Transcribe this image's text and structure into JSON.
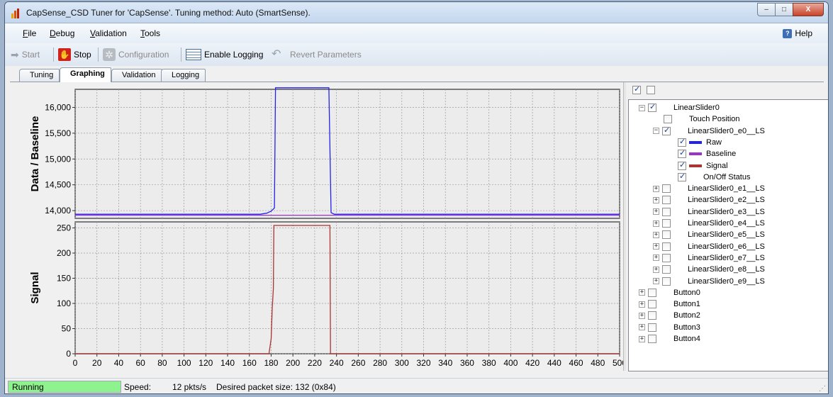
{
  "window": {
    "title": "CapSense_CSD Tuner for 'CapSense'. Tuning method: Auto (SmartSense).",
    "buttons": [
      "minimize-icon",
      "maximize-icon",
      "close-icon"
    ],
    "minimize_glyph": "–",
    "maximize_glyph": "□",
    "close_glyph": "X"
  },
  "menu": {
    "items": [
      {
        "label": "File",
        "accel": "F"
      },
      {
        "label": "Debug",
        "accel": "D"
      },
      {
        "label": "Validation",
        "accel": "V"
      },
      {
        "label": "Tools",
        "accel": "T"
      }
    ],
    "help": "Help",
    "help_icon_glyph": "?"
  },
  "toolbar": {
    "start": "Start",
    "stop": "Stop",
    "configuration": "Configuration",
    "enable_logging": "Enable Logging",
    "revert_parameters": "Revert Parameters"
  },
  "tabs": [
    "Tuning",
    "Graphing",
    "Validation",
    "Logging"
  ],
  "active_tab": "Graphing",
  "colors": {
    "raw": "#2222ee",
    "baseline": "#9933cc",
    "signal": "#aa3333",
    "status_running": "#8ef28e"
  },
  "chart_data": [
    {
      "type": "line",
      "title": "",
      "ylabel": "Data / Baseline",
      "xlabel": "",
      "xlim": [
        0,
        500
      ],
      "ylim": [
        13850,
        16350
      ],
      "yticks": [
        14000,
        14500,
        15000,
        15500,
        16000
      ],
      "ytick_labels": [
        "14,000",
        "14,500",
        "15,000",
        "15,500",
        "16,000"
      ],
      "grid": true,
      "series": [
        {
          "name": "Raw",
          "color_key": "raw",
          "x": [
            0,
            170,
            176,
            180,
            183,
            184,
            233,
            235,
            238,
            500
          ],
          "y": [
            13930,
            13930,
            13950,
            13990,
            14050,
            16380,
            16380,
            13960,
            13930,
            13930
          ]
        },
        {
          "name": "Baseline",
          "color_key": "baseline",
          "x": [
            0,
            500
          ],
          "y": [
            13910,
            13910
          ]
        }
      ]
    },
    {
      "type": "line",
      "title": "",
      "ylabel": "Signal",
      "xlabel": "",
      "xlim": [
        0,
        500
      ],
      "ylim": [
        0,
        262
      ],
      "yticks": [
        0,
        50,
        100,
        150,
        200,
        250
      ],
      "ytick_labels": [
        "0",
        "50",
        "100",
        "150",
        "200",
        "250"
      ],
      "xticks": [
        0,
        20,
        40,
        60,
        80,
        100,
        120,
        140,
        160,
        180,
        200,
        220,
        240,
        260,
        280,
        300,
        320,
        340,
        360,
        380,
        400,
        420,
        440,
        460,
        480,
        500
      ],
      "xtick_labels": [
        "0",
        "20",
        "40",
        "60",
        "80",
        "100",
        "120",
        "140",
        "160",
        "180",
        "200",
        "220",
        "240",
        "260",
        "280",
        "300",
        "320",
        "340",
        "360",
        "380",
        "400",
        "420",
        "440",
        "460",
        "480",
        "500"
      ],
      "grid": true,
      "series": [
        {
          "name": "Signal",
          "color_key": "signal",
          "x": [
            0,
            178,
            180,
            181,
            182,
            182.5,
            234,
            234.5,
            500
          ],
          "y": [
            0,
            0,
            30,
            90,
            130,
            255,
            255,
            0,
            0
          ]
        }
      ]
    }
  ],
  "tree": {
    "header_checks": [
      true,
      false
    ],
    "nodes": [
      {
        "label": "LinearSlider0",
        "level": 0,
        "expander": "-",
        "checked": true
      },
      {
        "label": "Touch Position",
        "level": 1,
        "expander": "",
        "checked": false
      },
      {
        "label": "LinearSlider0_e0__LS",
        "level": 1,
        "expander": "-",
        "checked": true
      },
      {
        "label": "Raw",
        "level": 2,
        "expander": "",
        "checked": true,
        "swatch": "raw"
      },
      {
        "label": "Baseline",
        "level": 2,
        "expander": "",
        "checked": true,
        "swatch": "baseline"
      },
      {
        "label": "Signal",
        "level": 2,
        "expander": "",
        "checked": true,
        "swatch": "signal"
      },
      {
        "label": "On/Off Status",
        "level": 2,
        "expander": "",
        "checked": true
      },
      {
        "label": "LinearSlider0_e1__LS",
        "level": 1,
        "expander": "+",
        "checked": false
      },
      {
        "label": "LinearSlider0_e2__LS",
        "level": 1,
        "expander": "+",
        "checked": false
      },
      {
        "label": "LinearSlider0_e3__LS",
        "level": 1,
        "expander": "+",
        "checked": false
      },
      {
        "label": "LinearSlider0_e4__LS",
        "level": 1,
        "expander": "+",
        "checked": false
      },
      {
        "label": "LinearSlider0_e5__LS",
        "level": 1,
        "expander": "+",
        "checked": false
      },
      {
        "label": "LinearSlider0_e6__LS",
        "level": 1,
        "expander": "+",
        "checked": false
      },
      {
        "label": "LinearSlider0_e7__LS",
        "level": 1,
        "expander": "+",
        "checked": false
      },
      {
        "label": "LinearSlider0_e8__LS",
        "level": 1,
        "expander": "+",
        "checked": false
      },
      {
        "label": "LinearSlider0_e9__LS",
        "level": 1,
        "expander": "+",
        "checked": false
      },
      {
        "label": "Button0",
        "level": 0,
        "expander": "+",
        "checked": false
      },
      {
        "label": "Button1",
        "level": 0,
        "expander": "+",
        "checked": false
      },
      {
        "label": "Button2",
        "level": 0,
        "expander": "+",
        "checked": false
      },
      {
        "label": "Button3",
        "level": 0,
        "expander": "+",
        "checked": false
      },
      {
        "label": "Button4",
        "level": 0,
        "expander": "+",
        "checked": false
      }
    ]
  },
  "status": {
    "state": "Running",
    "speed_label": "Speed:",
    "speed_value": "12 pkts/s",
    "packet_size": "Desired packet size: 132 (0x84)"
  }
}
